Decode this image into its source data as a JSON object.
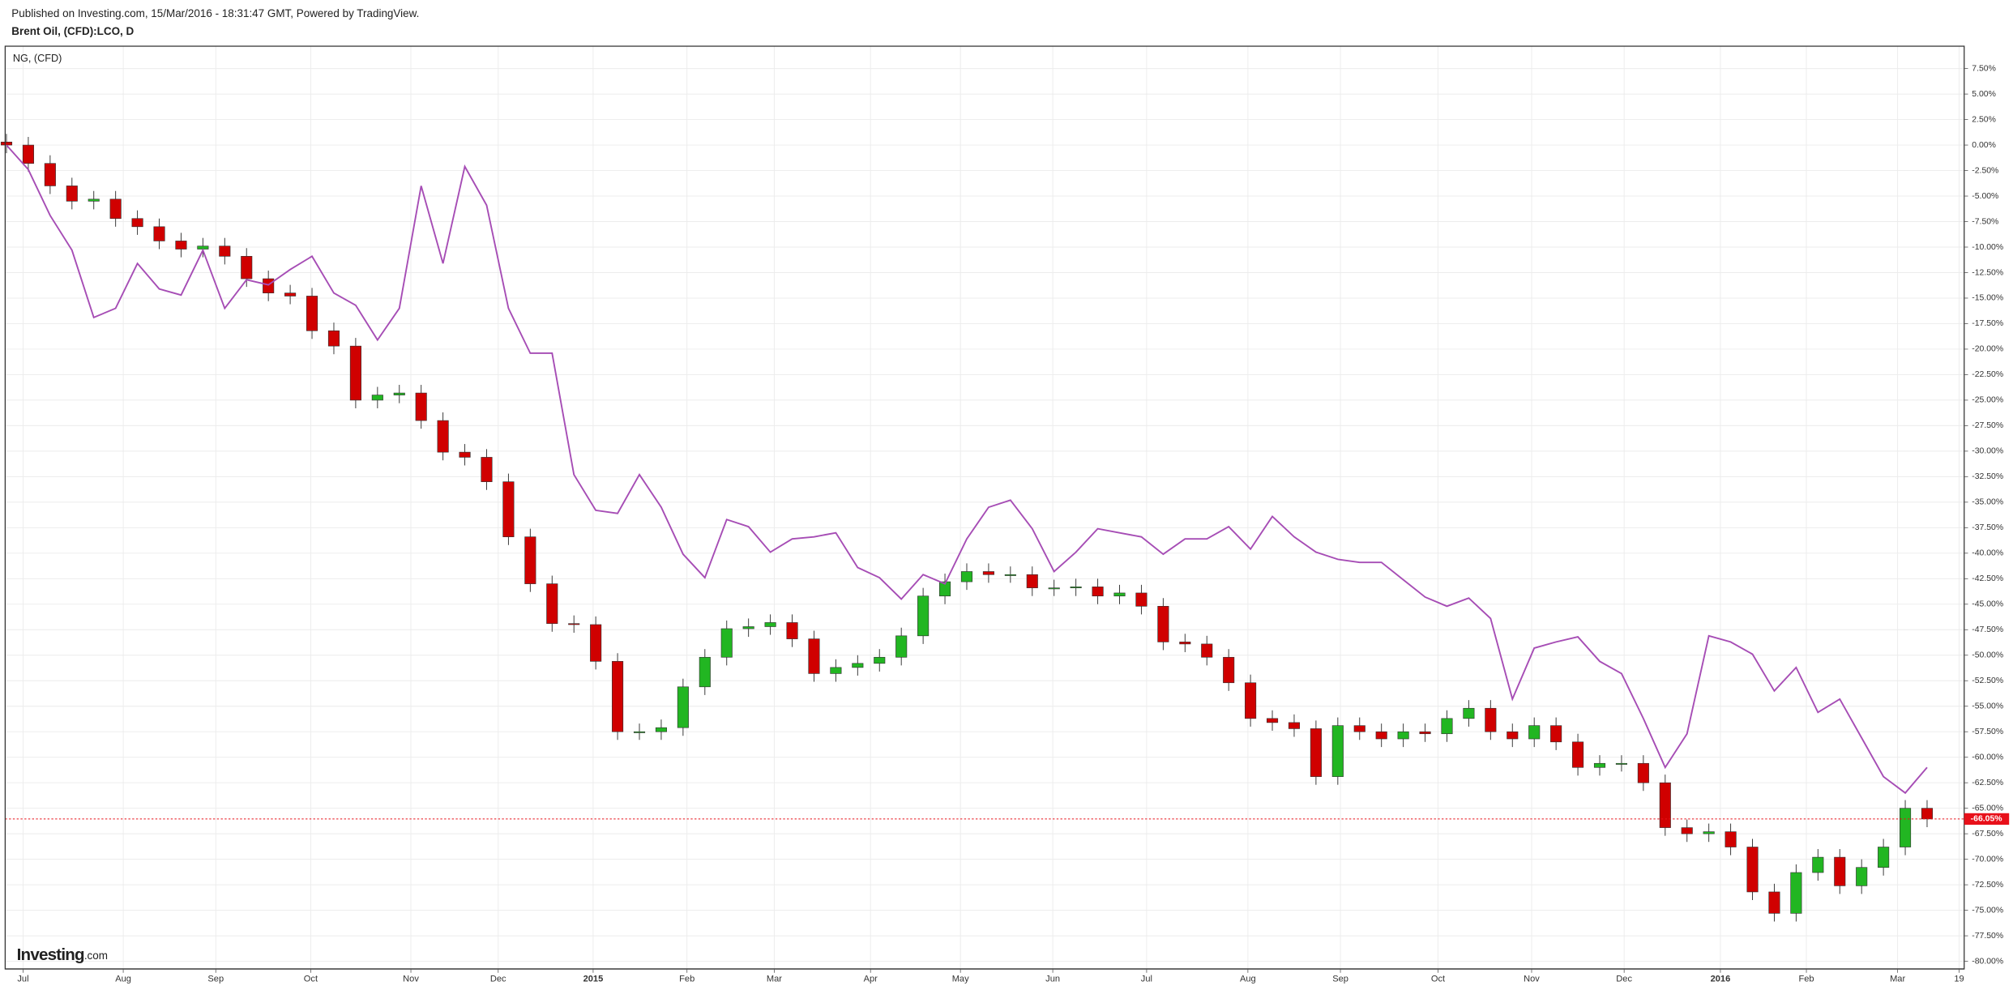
{
  "header": {
    "published": "Published on Investing.com, 15/Mar/2016 - 18:31:47 GMT, Powered by TradingView."
  },
  "logo": {
    "name": "Investing",
    "suffix": ".com"
  },
  "chart_data": {
    "type": "candlestick",
    "grid": true,
    "xlim": [
      -0.06,
      89.7
    ],
    "ylim": [
      -80.75,
      9.69
    ],
    "xticks": [
      {
        "value": 0.76,
        "label": "Jul"
      },
      {
        "value": 5.35,
        "label": "Aug"
      },
      {
        "value": 9.59,
        "label": "Sep"
      },
      {
        "value": 13.94,
        "label": "Oct"
      },
      {
        "value": 18.53,
        "label": "Nov"
      },
      {
        "value": 22.53,
        "label": "Dec"
      },
      {
        "value": 26.88,
        "label": "2015"
      },
      {
        "value": 31.18,
        "label": "Feb"
      },
      {
        "value": 35.18,
        "label": "Mar"
      },
      {
        "value": 39.59,
        "label": "Apr"
      },
      {
        "value": 43.71,
        "label": "May"
      },
      {
        "value": 47.94,
        "label": "Jun"
      },
      {
        "value": 52.24,
        "label": "Jul"
      },
      {
        "value": 56.88,
        "label": "Aug"
      },
      {
        "value": 61.12,
        "label": "Sep"
      },
      {
        "value": 65.59,
        "label": "Oct"
      },
      {
        "value": 69.88,
        "label": "Nov"
      },
      {
        "value": 74.12,
        "label": "Dec"
      },
      {
        "value": 78.53,
        "label": "2016"
      },
      {
        "value": 82.47,
        "label": "Feb"
      },
      {
        "value": 86.65,
        "label": "Mar"
      },
      {
        "value": 89.47,
        "label": "19"
      }
    ],
    "yticks": [
      {
        "value": 7.5,
        "label": "7.50%"
      },
      {
        "value": 5,
        "label": "5.00%"
      },
      {
        "value": 2.5,
        "label": "2.50%"
      },
      {
        "value": 0,
        "label": "0.00%"
      },
      {
        "value": -2.5,
        "label": "-2.50%"
      },
      {
        "value": -5,
        "label": "-5.00%"
      },
      {
        "value": -7.5,
        "label": "-7.50%"
      },
      {
        "value": -10,
        "label": "-10.00%"
      },
      {
        "value": -12.5,
        "label": "-12.50%"
      },
      {
        "value": -15,
        "label": "-15.00%"
      },
      {
        "value": -17.5,
        "label": "-17.50%"
      },
      {
        "value": -20,
        "label": "-20.00%"
      },
      {
        "value": -22.5,
        "label": "-22.50%"
      },
      {
        "value": -25,
        "label": "-25.00%"
      },
      {
        "value": -27.5,
        "label": "-27.50%"
      },
      {
        "value": -30,
        "label": "-30.00%"
      },
      {
        "value": -32.5,
        "label": "-32.50%"
      },
      {
        "value": -35,
        "label": "-35.00%"
      },
      {
        "value": -37.5,
        "label": "-37.50%"
      },
      {
        "value": -40,
        "label": "-40.00%"
      },
      {
        "value": -42.5,
        "label": "-42.50%"
      },
      {
        "value": -45,
        "label": "-45.00%"
      },
      {
        "value": -47.5,
        "label": "-47.50%"
      },
      {
        "value": -50,
        "label": "-50.00%"
      },
      {
        "value": -52.5,
        "label": "-52.50%"
      },
      {
        "value": -55,
        "label": "-55.00%"
      },
      {
        "value": -57.5,
        "label": "-57.50%"
      },
      {
        "value": -60,
        "label": "-60.00%"
      },
      {
        "value": -62.5,
        "label": "-62.50%"
      },
      {
        "value": -65,
        "label": "-65.00%"
      },
      {
        "value": -67.5,
        "label": "-67.50%"
      },
      {
        "value": -70,
        "label": "-70.00%"
      },
      {
        "value": -72.5,
        "label": "-72.50%"
      },
      {
        "value": -75,
        "label": "-75.00%"
      },
      {
        "value": -77.5,
        "label": "-77.50%"
      },
      {
        "value": -80,
        "label": "-80.00%"
      }
    ],
    "last_value": {
      "value": -66.05,
      "label": "-66.05%",
      "color": "#e8101a"
    },
    "series": [
      {
        "name": "Brent Oil, (CFD):LCO, D",
        "type": "candlestick",
        "up_color": "#22b622",
        "down_color": "#d00000",
        "open": [
          0.3,
          0,
          -1.8,
          -4.0,
          -5.5,
          -5.3,
          -7.2,
          -8.0,
          -9.4,
          -10.2,
          -9.9,
          -10.9,
          -13.1,
          -14.5,
          -14.8,
          -18.2,
          -19.7,
          -25.0,
          -24.5,
          -24.3,
          -27.0,
          -30.1,
          -30.6,
          -33.0,
          -38.4,
          -43.0,
          -46.9,
          -47.0,
          -50.6,
          -57.5,
          -57.5,
          -57.1,
          -53.1,
          -50.2,
          -47.4,
          -47.2,
          -46.8,
          -48.4,
          -51.8,
          -51.2,
          -50.8,
          -50.2,
          -48.1,
          -44.2,
          -42.8,
          -41.8,
          -42.1,
          -42.1,
          -43.4,
          -43.4,
          -43.3,
          -44.2,
          -43.9,
          -45.2,
          -48.7,
          -48.9,
          -50.2,
          -52.7,
          -56.2,
          -56.6,
          -57.2,
          -61.9,
          -56.9,
          -57.5,
          -58.2,
          -57.5,
          -57.7,
          -56.2,
          -55.2,
          -57.5,
          -58.2,
          -56.9,
          -58.5,
          -61.0,
          -60.6,
          -60.6,
          -62.5,
          -66.9,
          -67.5,
          -67.3,
          -68.8,
          -73.2,
          -75.3,
          -71.3,
          -69.8,
          -72.6,
          -70.8,
          -68.8,
          -65.0
        ],
        "high": [
          1.1,
          0.8,
          -1.0,
          -3.2,
          -4.5,
          -4.5,
          -6.4,
          -7.2,
          -8.6,
          -9.1,
          -9.1,
          -10.1,
          -12.3,
          -13.7,
          -14.0,
          -17.4,
          -18.9,
          -23.7,
          -23.5,
          -23.5,
          -26.2,
          -29.3,
          -29.8,
          -32.2,
          -37.6,
          -42.2,
          -46.1,
          -46.2,
          -49.8,
          -56.7,
          -56.3,
          -52.3,
          -49.4,
          -46.6,
          -46.4,
          -46.0,
          -46.0,
          -47.6,
          -50.4,
          -50.0,
          -49.4,
          -47.3,
          -43.4,
          -42.0,
          -41.0,
          -41.0,
          -41.3,
          -41.3,
          -42.6,
          -42.5,
          -42.5,
          -43.1,
          -43.1,
          -44.4,
          -47.9,
          -48.1,
          -49.4,
          -51.9,
          -55.4,
          -55.8,
          -56.4,
          -56.1,
          -56.1,
          -56.7,
          -56.7,
          -56.7,
          -55.4,
          -54.4,
          -54.4,
          -56.7,
          -56.1,
          -56.1,
          -57.7,
          -59.8,
          -59.8,
          -59.8,
          -61.7,
          -66.1,
          -66.5,
          -66.5,
          -68.0,
          -72.4,
          -70.5,
          -69.0,
          -69.0,
          -70.0,
          -68.0,
          -64.2,
          -64.2
        ],
        "low": [
          -0.8,
          -2.6,
          -4.8,
          -6.3,
          -6.3,
          -8.0,
          -8.8,
          -10.2,
          -11.0,
          -11.0,
          -11.7,
          -13.9,
          -15.3,
          -15.6,
          -19.0,
          -20.5,
          -25.8,
          -25.8,
          -25.3,
          -27.8,
          -30.9,
          -31.4,
          -33.8,
          -39.2,
          -43.8,
          -47.7,
          -47.8,
          -51.4,
          -58.3,
          -58.3,
          -58.3,
          -57.9,
          -53.9,
          -51.0,
          -48.2,
          -48.0,
          -49.2,
          -52.6,
          -52.6,
          -52.0,
          -51.6,
          -51.0,
          -48.9,
          -45.0,
          -43.6,
          -42.9,
          -42.9,
          -44.2,
          -44.2,
          -44.2,
          -45.0,
          -45.0,
          -46.0,
          -49.5,
          -49.7,
          -51.0,
          -53.5,
          -57.0,
          -57.4,
          -58.0,
          -62.7,
          -62.7,
          -58.3,
          -59.0,
          -59.0,
          -58.5,
          -58.5,
          -57.0,
          -58.3,
          -59.0,
          -59.0,
          -59.3,
          -61.8,
          -61.8,
          -61.4,
          -63.3,
          -67.7,
          -68.3,
          -68.3,
          -69.6,
          -74.0,
          -76.1,
          -76.1,
          -72.1,
          -73.4,
          -73.4,
          -71.6,
          -69.6,
          -66.85
        ],
        "close": [
          0,
          -1.8,
          -4.0,
          -5.5,
          -5.3,
          -7.2,
          -8.0,
          -9.4,
          -10.2,
          -9.9,
          -10.9,
          -13.1,
          -14.5,
          -14.8,
          -18.2,
          -19.7,
          -25.0,
          -24.5,
          -24.3,
          -27.0,
          -30.1,
          -30.6,
          -33.0,
          -38.4,
          -43.0,
          -46.9,
          -47.0,
          -50.6,
          -57.5,
          -57.5,
          -57.1,
          -53.1,
          -50.2,
          -47.4,
          -47.2,
          -46.8,
          -48.4,
          -51.8,
          -51.2,
          -50.8,
          -50.2,
          -48.1,
          -44.2,
          -42.8,
          -41.8,
          -42.1,
          -42.1,
          -43.4,
          -43.4,
          -43.3,
          -44.2,
          -43.9,
          -45.2,
          -48.7,
          -48.9,
          -50.2,
          -52.7,
          -56.2,
          -56.6,
          -57.2,
          -61.9,
          -56.9,
          -57.5,
          -58.2,
          -57.5,
          -57.7,
          -56.2,
          -55.2,
          -57.5,
          -58.2,
          -56.9,
          -58.5,
          -61.0,
          -60.6,
          -60.6,
          -62.5,
          -66.9,
          -67.5,
          -67.3,
          -68.8,
          -73.2,
          -75.3,
          -71.3,
          -69.8,
          -72.6,
          -70.8,
          -68.8,
          -65.0,
          -66.05
        ]
      },
      {
        "name": "NG,  (CFD)",
        "type": "line",
        "color": "#a64db5",
        "values": [
          0,
          -2.4,
          -6.9,
          -10.3,
          -16.9,
          -16.0,
          -11.6,
          -14.1,
          -14.7,
          -10.3,
          -16.0,
          -13.2,
          -13.7,
          -12.2,
          -10.9,
          -14.5,
          -15.7,
          -19.1,
          -16.0,
          -4.0,
          -11.6,
          -2.1,
          -5.9,
          -16.0,
          -20.4,
          -20.4,
          -32.3,
          -35.8,
          -36.1,
          -32.3,
          -35.5,
          -40.1,
          -42.4,
          -36.7,
          -37.4,
          -39.9,
          -38.6,
          -38.4,
          -38.0,
          -41.4,
          -42.4,
          -44.5,
          -42.1,
          -43.0,
          -38.6,
          -35.5,
          -34.8,
          -37.6,
          -41.8,
          -39.9,
          -37.6,
          -38.0,
          -38.4,
          -40.1,
          -38.6,
          -38.6,
          -37.4,
          -39.6,
          -36.4,
          -38.4,
          -39.9,
          -40.6,
          -40.9,
          -40.9,
          -42.6,
          -44.3,
          -45.2,
          -44.4,
          -46.4,
          -54.3,
          -49.3,
          -48.7,
          -48.2,
          -50.6,
          -51.8,
          -56.2,
          -61.0,
          -57.7,
          -48.1,
          -48.7,
          -49.9,
          -53.5,
          -51.2,
          -55.6,
          -54.3,
          -58.1,
          -61.9,
          -63.5,
          -61.0
        ]
      }
    ]
  }
}
